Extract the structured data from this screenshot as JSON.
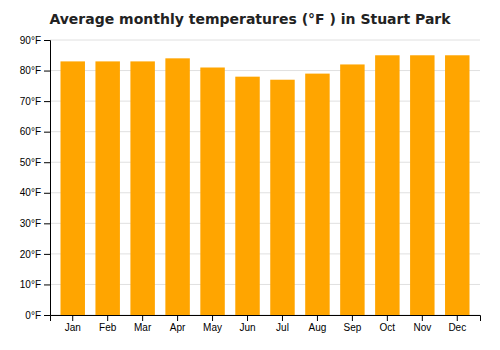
{
  "chart_data": {
    "type": "bar",
    "title": "Average monthly temperatures (°F ) in Stuart Park",
    "categories": [
      "Jan",
      "Feb",
      "Mar",
      "Apr",
      "May",
      "Jun",
      "Jul",
      "Aug",
      "Sep",
      "Oct",
      "Nov",
      "Dec"
    ],
    "values": [
      83,
      83,
      83,
      84,
      81,
      78,
      77,
      79,
      82,
      85,
      85,
      85
    ],
    "color": "#FFA500",
    "ylim": [
      0,
      90
    ],
    "yticks": [
      {
        "value": 0,
        "label": "0°F"
      },
      {
        "value": 10,
        "label": "10°F"
      },
      {
        "value": 20,
        "label": "20°F"
      },
      {
        "value": 30,
        "label": "30°F"
      },
      {
        "value": 40,
        "label": "40°F"
      },
      {
        "value": 50,
        "label": "50°F"
      },
      {
        "value": 60,
        "label": "60°F"
      },
      {
        "value": 70,
        "label": "70°F"
      },
      {
        "value": 80,
        "label": "80°F"
      },
      {
        "value": 90,
        "label": "90°F"
      }
    ],
    "grid": true
  }
}
